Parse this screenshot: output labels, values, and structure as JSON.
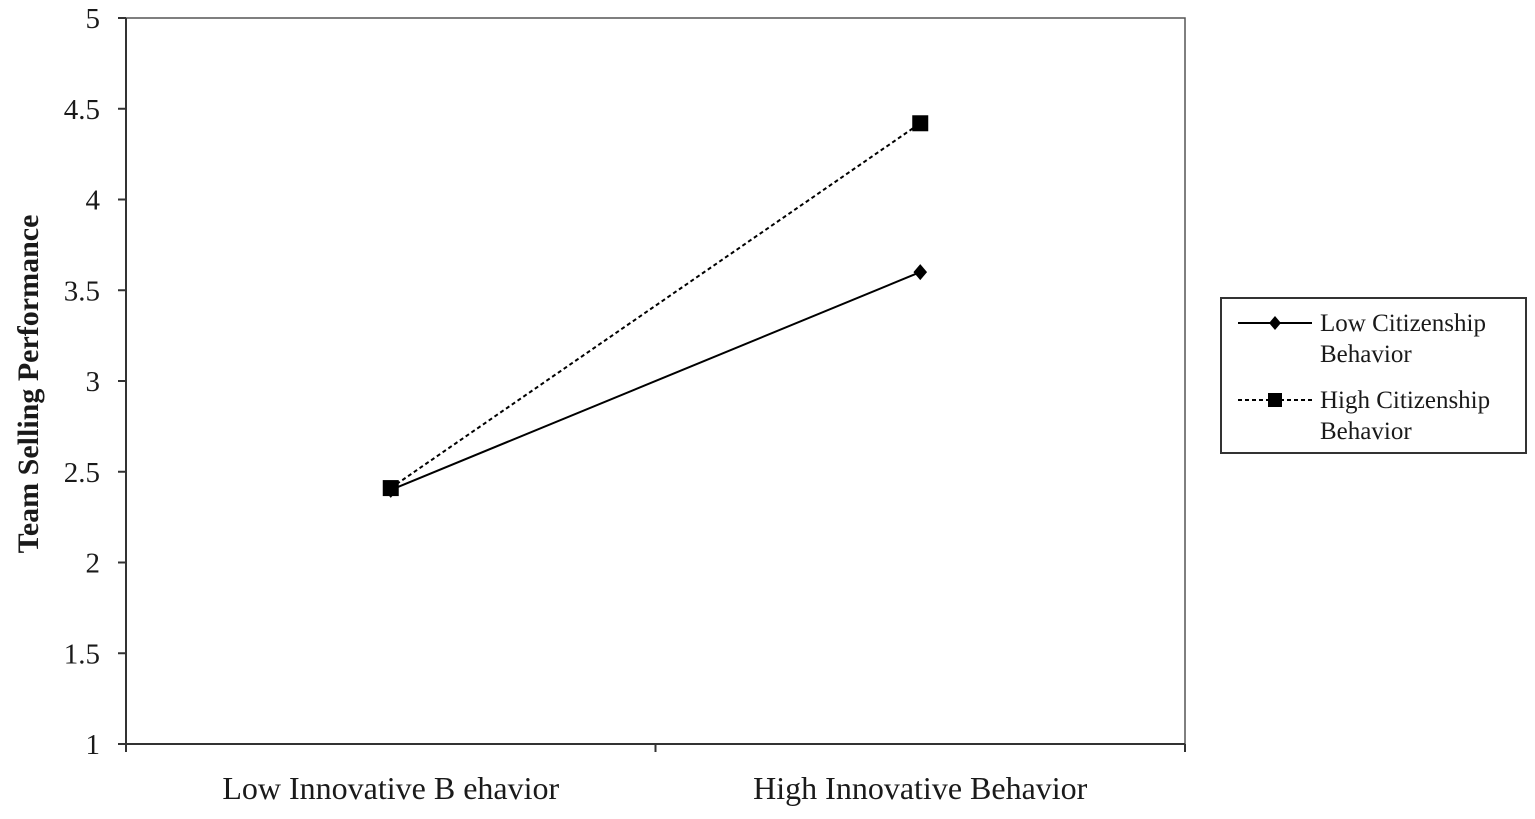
{
  "chart_data": {
    "type": "line",
    "title": "",
    "xlabel": "",
    "ylabel": "Team Selling  Performance",
    "categories": [
      "Low Innovative B ehavior",
      "High Innovative Behavior"
    ],
    "y_ticks": [
      "1",
      "1.5",
      "2",
      "2.5",
      "3",
      "3.5",
      "4",
      "4.5",
      "5"
    ],
    "ylim": [
      1,
      5
    ],
    "grid": false,
    "legend_position": "right",
    "series": [
      {
        "name": "Low Citizenship Behavior",
        "legend_lines": [
          "Low Citizenship",
          "Behavior"
        ],
        "values": [
          2.4,
          3.6
        ],
        "line_style": "solid",
        "marker": "diamond",
        "color": "#000000"
      },
      {
        "name": "High Citizenship Behavior",
        "legend_lines": [
          "High Citizenship",
          "Behavior"
        ],
        "values": [
          2.41,
          4.42
        ],
        "line_style": "dotted",
        "marker": "square",
        "color": "#000000"
      }
    ]
  }
}
